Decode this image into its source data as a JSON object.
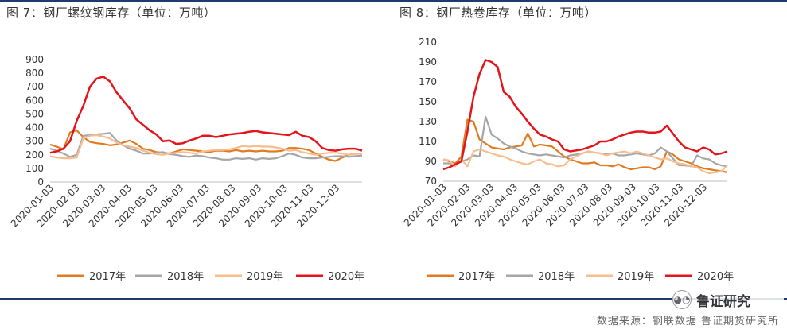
{
  "left_title": "图 7：钢厂螺纹钢库存（单位：万吨）",
  "right_title": "图 8：钢厂热卷库存（单位：万吨）",
  "source": "数据来源：钢联数据  鲁证期货研究所",
  "watermark": {
    "icon": "wechat-icon",
    "text": "鲁证研究"
  },
  "colors": {
    "2017年": "#e07b22",
    "2018年": "#a6a6a6",
    "2019年": "#f7bd8e",
    "2020年": "#e3141b",
    "frame": "#1f3a6e"
  },
  "chart_data": [
    {
      "type": "line",
      "title": "图 7：钢厂螺纹钢库存（单位：万吨）",
      "x_ticks": [
        "2020-01-03",
        "2020-02-03",
        "2020-03-03",
        "2020-04-03",
        "2020-05-03",
        "2020-06-03",
        "2020-07-03",
        "2020-08-03",
        "2020-09-03",
        "2020-10-03",
        "2020-11-03",
        "2020-12-03"
      ],
      "ylim": [
        0,
        900
      ],
      "y_ticks": [
        0,
        100,
        200,
        300,
        400,
        500,
        600,
        700,
        800,
        900
      ],
      "series": [
        {
          "name": "2017年",
          "values": [
            275,
            260,
            240,
            365,
            380,
            330,
            295,
            285,
            280,
            270,
            275,
            290,
            305,
            280,
            245,
            235,
            220,
            215,
            210,
            225,
            240,
            235,
            230,
            225,
            220,
            230,
            230,
            225,
            235,
            225,
            230,
            225,
            230,
            225,
            225,
            230,
            250,
            250,
            245,
            235,
            210,
            185,
            165,
            155,
            180,
            200,
            210,
            210
          ]
        },
        {
          "name": "2018年",
          "values": [
            245,
            230,
            210,
            185,
            200,
            340,
            345,
            350,
            355,
            360,
            305,
            270,
            245,
            230,
            210,
            210,
            215,
            220,
            205,
            200,
            190,
            185,
            195,
            190,
            180,
            175,
            165,
            165,
            175,
            170,
            175,
            165,
            175,
            170,
            175,
            190,
            210,
            200,
            180,
            175,
            175,
            180,
            185,
            190,
            190,
            185,
            190,
            195
          ]
        },
        {
          "name": "2019年",
          "values": [
            190,
            180,
            175,
            175,
            180,
            320,
            340,
            345,
            335,
            320,
            290,
            270,
            260,
            250,
            230,
            215,
            205,
            200,
            210,
            215,
            220,
            215,
            210,
            225,
            230,
            235,
            235,
            240,
            250,
            265,
            260,
            265,
            260,
            260,
            255,
            245,
            230,
            235,
            220,
            210,
            200,
            210,
            215,
            215,
            210,
            200,
            205,
            210
          ]
        },
        {
          "name": "2020年",
          "values": [
            215,
            225,
            245,
            300,
            450,
            560,
            700,
            760,
            775,
            740,
            660,
            600,
            540,
            460,
            420,
            380,
            350,
            300,
            305,
            280,
            285,
            305,
            320,
            340,
            340,
            330,
            340,
            350,
            355,
            360,
            370,
            375,
            365,
            360,
            355,
            350,
            345,
            370,
            340,
            330,
            300,
            250,
            235,
            230,
            240,
            245,
            245,
            230
          ]
        }
      ]
    },
    {
      "type": "line",
      "title": "图 8：钢厂热卷库存（单位：万吨）",
      "x_ticks": [
        "2020-01-03",
        "2020-02-03",
        "2020-03-03",
        "2020-04-03",
        "2020-05-03",
        "2020-06-03",
        "2020-07-03",
        "2020-08-03",
        "2020-09-03",
        "2020-10-03",
        "2020-11-03",
        "2020-12-03"
      ],
      "ylim": [
        70,
        210
      ],
      "y_ticks": [
        70,
        90,
        110,
        130,
        150,
        170,
        190,
        210
      ],
      "series": [
        {
          "name": "2017年",
          "values": [
            92,
            90,
            88,
            95,
            132,
            130,
            112,
            108,
            104,
            103,
            102,
            104,
            105,
            106,
            118,
            105,
            107,
            106,
            105,
            100,
            95,
            92,
            90,
            88,
            88,
            89,
            86,
            86,
            85,
            87,
            84,
            82,
            83,
            84,
            84,
            82,
            85,
            100,
            97,
            92,
            90,
            88,
            85,
            83,
            82,
            81,
            80,
            79
          ]
        },
        {
          "name": "2018年",
          "values": [
            88,
            88,
            87,
            90,
            92,
            96,
            95,
            135,
            117,
            113,
            108,
            105,
            103,
            100,
            98,
            97,
            96,
            97,
            96,
            95,
            94,
            96,
            97,
            98,
            100,
            99,
            98,
            97,
            98,
            96,
            96,
            97,
            98,
            97,
            96,
            98,
            104,
            100,
            93,
            86,
            86,
            85,
            96,
            93,
            92,
            88,
            86,
            85
          ]
        },
        {
          "name": "2019年",
          "values": [
            92,
            91,
            85,
            92,
            85,
            100,
            102,
            100,
            98,
            96,
            95,
            92,
            90,
            88,
            87,
            90,
            92,
            88,
            87,
            85,
            86,
            92,
            95,
            98,
            100,
            99,
            98,
            96,
            98,
            99,
            100,
            98,
            100,
            98,
            96,
            94,
            92,
            93,
            90,
            88,
            87,
            85,
            84,
            80,
            78,
            79,
            80,
            86
          ]
        },
        {
          "name": "2020年",
          "values": [
            82,
            84,
            87,
            90,
            120,
            155,
            178,
            192,
            190,
            185,
            160,
            155,
            145,
            138,
            130,
            123,
            117,
            115,
            112,
            110,
            102,
            100,
            101,
            102,
            104,
            106,
            110,
            110,
            112,
            115,
            117,
            119,
            120,
            120,
            119,
            119,
            120,
            126,
            118,
            110,
            104,
            102,
            100,
            104,
            102,
            97,
            98,
            100
          ]
        }
      ]
    }
  ]
}
